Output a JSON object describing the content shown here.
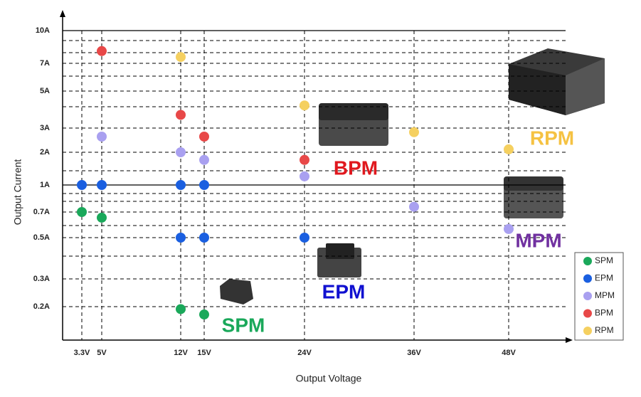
{
  "chart_data": {
    "type": "scatter",
    "x_label": "Output Voltage",
    "y_label": "Output Current",
    "log_y": true,
    "grid": true,
    "legend": "bottom-right",
    "xlim": [
      0,
      55
    ],
    "xticks": [
      {
        "value": 3.3,
        "label": "3.3V"
      },
      {
        "value": 5,
        "label": "5V"
      },
      {
        "value": 12,
        "label": "12V"
      },
      {
        "value": 15,
        "label": "15V"
      },
      {
        "value": 24,
        "label": "24V"
      },
      {
        "value": 36,
        "label": "36V"
      },
      {
        "value": 48,
        "label": "48V"
      }
    ],
    "ylim": [
      0.1,
      10
    ],
    "yticks": [
      {
        "value": 0.2,
        "label": "0.2A"
      },
      {
        "value": 0.3,
        "label": "0.3A"
      },
      {
        "value": 0.5,
        "label": "0.5A"
      },
      {
        "value": 0.7,
        "label": "0.7A"
      },
      {
        "value": 1,
        "label": "1A"
      },
      {
        "value": 2,
        "label": "2A"
      },
      {
        "value": 3,
        "label": "3A"
      },
      {
        "value": 5,
        "label": "5A"
      },
      {
        "value": 7,
        "label": "7A"
      },
      {
        "value": 10,
        "label": "10A"
      }
    ],
    "series": [
      {
        "name": "SPM",
        "color": "#1aa85a",
        "x": [
          3.3,
          5,
          12,
          15
        ],
        "values": [
          0.7,
          0.65,
          0.19,
          0.17
        ]
      },
      {
        "name": "EPM",
        "color": "#1a5fe0",
        "x": [
          3.3,
          5,
          12,
          15,
          12,
          15,
          24
        ],
        "values": [
          1,
          1,
          1,
          1,
          0.5,
          0.5,
          0.5
        ]
      },
      {
        "name": "MPM",
        "color": "#a9a0f0",
        "x": [
          5,
          12,
          15,
          24,
          36,
          48
        ],
        "values": [
          2.6,
          2,
          1.7,
          1.2,
          0.75,
          0.56
        ]
      },
      {
        "name": "BPM",
        "color": "#e84848",
        "x": [
          5,
          12,
          15,
          24
        ],
        "values": [
          8,
          3.6,
          2.6,
          1.7
        ]
      },
      {
        "name": "RPM",
        "color": "#f5d060",
        "x": [
          12,
          24,
          36,
          48
        ],
        "values": [
          7.5,
          4.1,
          2.8,
          2.1
        ]
      }
    ],
    "annotations": [
      {
        "text": "RPM",
        "color": "#f5c242"
      },
      {
        "text": "BPM",
        "color": "#e0181e"
      },
      {
        "text": "MPM",
        "color": "#7030a0"
      },
      {
        "text": "EPM",
        "color": "#1010d0"
      },
      {
        "text": "SPM",
        "color": "#1aa85a"
      }
    ]
  }
}
